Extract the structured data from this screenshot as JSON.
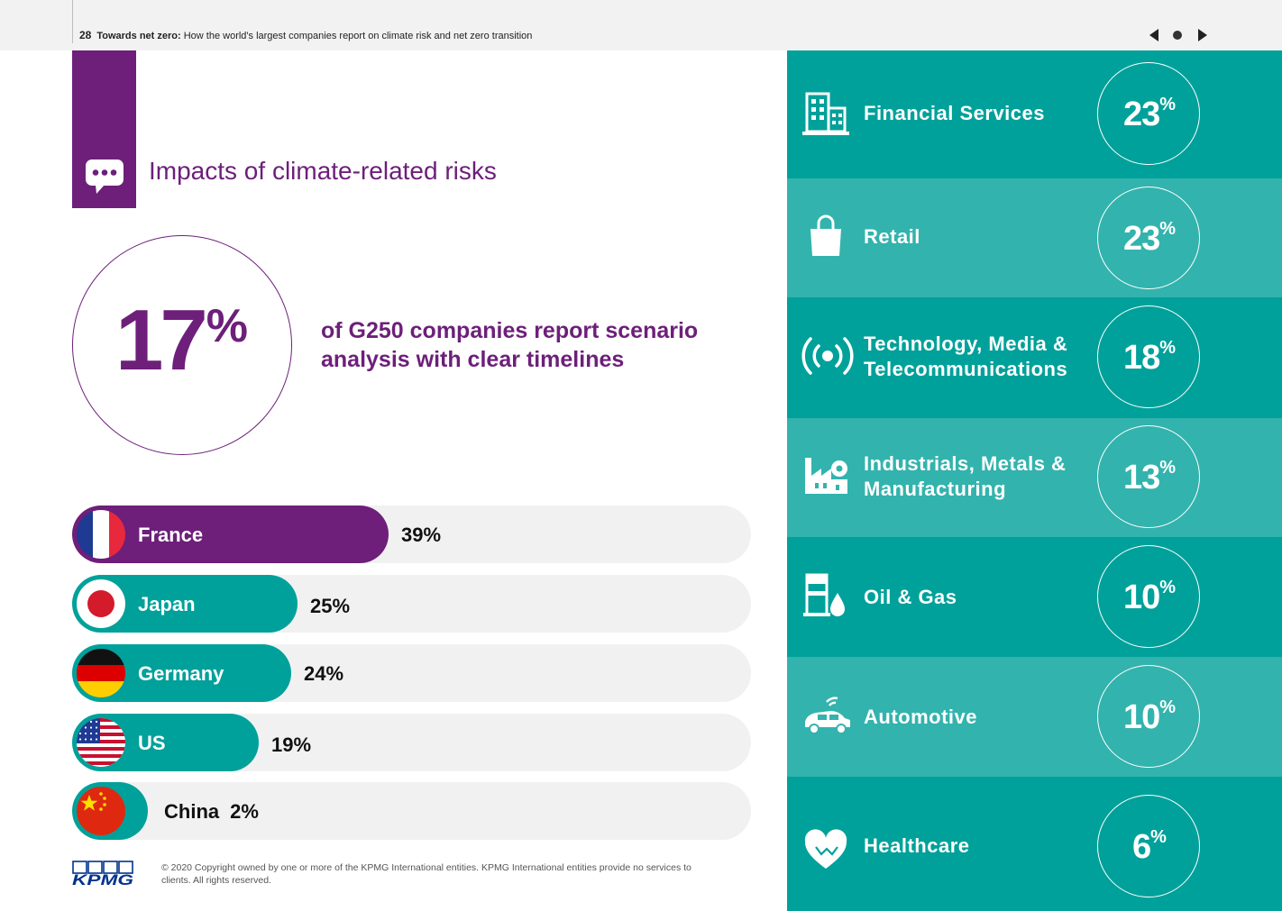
{
  "header": {
    "page_number": "28",
    "title_bold": "Towards net zero:",
    "title_rest": " How the world's largest companies report on climate risk and net zero transition"
  },
  "section": {
    "title": "Impacts of climate-related risks"
  },
  "highlight": {
    "value": "17",
    "unit": "%",
    "description": "of G250 companies report scenario analysis with clear timelines"
  },
  "countries": [
    {
      "name": "France",
      "value_label": "39%",
      "value": 39,
      "color": "#6d1f7a",
      "flag": "france-flag"
    },
    {
      "name": "Japan",
      "value_label": "25%",
      "value": 25,
      "color": "#00a19a",
      "flag": "japan-flag"
    },
    {
      "name": "Germany",
      "value_label": "24%",
      "value": 24,
      "color": "#00a19a",
      "flag": "germany-flag"
    },
    {
      "name": "US",
      "value_label": "19%",
      "value": 19,
      "color": "#00a19a",
      "flag": "us-flag"
    },
    {
      "name": "China",
      "value_label": "2%",
      "value": 2,
      "color": "#00a19a",
      "flag": "china-flag"
    }
  ],
  "sectors": [
    {
      "name_line1": "Financial Services",
      "name_line2": "",
      "value": "23",
      "unit": "%",
      "icon": "building-icon"
    },
    {
      "name_line1": "Retail",
      "name_line2": "",
      "value": "23",
      "unit": "%",
      "icon": "shopping-bag-icon"
    },
    {
      "name_line1": "Technology, Media &",
      "name_line2": "Telecommunications",
      "value": "18",
      "unit": "%",
      "icon": "broadcast-icon"
    },
    {
      "name_line1": "Industrials, Metals &",
      "name_line2": "Manufacturing",
      "value": "13",
      "unit": "%",
      "icon": "factory-icon"
    },
    {
      "name_line1": "Oil & Gas",
      "name_line2": "",
      "value": "10",
      "unit": "%",
      "icon": "oil-drop-icon"
    },
    {
      "name_line1": "Automotive",
      "name_line2": "",
      "value": "10",
      "unit": "%",
      "icon": "connected-car-icon"
    },
    {
      "name_line1": "Healthcare",
      "name_line2": "",
      "value": "6",
      "unit": "%",
      "icon": "heart-icon"
    }
  ],
  "colors": {
    "purple": "#6d1f7a",
    "teal_dark": "#00a19a",
    "teal_light": "#33b3ad",
    "kpmg_blue": "#00338d"
  },
  "footer": {
    "logo_text": "KPMG",
    "copyright": "© 2020 Copyright owned by one or more of the KPMG International entities. KPMG International entities provide no services to clients.  All rights reserved."
  }
}
